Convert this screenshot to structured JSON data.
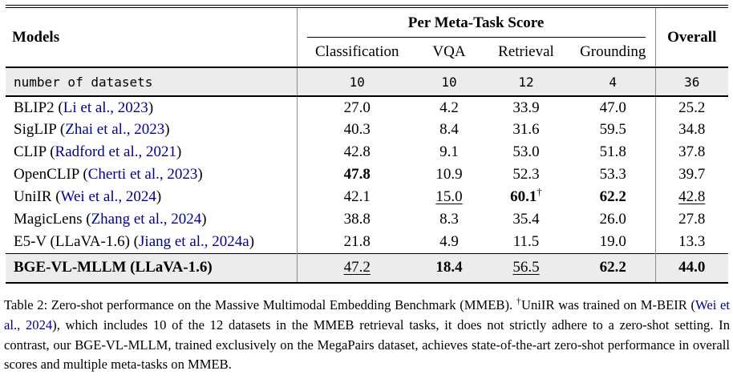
{
  "colors": {
    "citation_blue": "#00008B",
    "row_highlight": "#ececec",
    "rule_black": "#000000",
    "vertical_rule_gray": "#8c8c8c"
  },
  "table": {
    "header": {
      "models_label": "Models",
      "group_label": "Per Meta-Task Score",
      "overall_label": "Overall",
      "subcolumns": [
        "Classification",
        "VQA",
        "Retrieval",
        "Grounding"
      ]
    },
    "datasets_row": {
      "label": "number of datasets",
      "values": [
        "10",
        "10",
        "12",
        "4",
        "36"
      ]
    },
    "rows": [
      {
        "prefix": "BLIP2 (",
        "cite": "Li et al., 2023",
        "suffix": ")",
        "cells": [
          {
            "v": "27.0"
          },
          {
            "v": "4.2"
          },
          {
            "v": "33.9"
          },
          {
            "v": "47.0"
          },
          {
            "v": "25.2"
          }
        ]
      },
      {
        "prefix": "SigLIP (",
        "cite": "Zhai et al., 2023",
        "suffix": ")",
        "cells": [
          {
            "v": "40.3"
          },
          {
            "v": "8.4"
          },
          {
            "v": "31.6"
          },
          {
            "v": "59.5"
          },
          {
            "v": "34.8"
          }
        ]
      },
      {
        "prefix": "CLIP (",
        "cite": "Radford et al., 2021",
        "suffix": ")",
        "cells": [
          {
            "v": "42.8"
          },
          {
            "v": "9.1"
          },
          {
            "v": "53.0"
          },
          {
            "v": "51.8"
          },
          {
            "v": "37.8"
          }
        ]
      },
      {
        "prefix": "OpenCLIP (",
        "cite": "Cherti et al., 2023",
        "suffix": ")",
        "cells": [
          {
            "v": "47.8",
            "b": true
          },
          {
            "v": "10.9"
          },
          {
            "v": "52.3"
          },
          {
            "v": "53.3"
          },
          {
            "v": "39.7"
          }
        ]
      },
      {
        "prefix": "UniIR (",
        "cite": "Wei et al., 2024",
        "suffix": ")",
        "cells": [
          {
            "v": "42.1"
          },
          {
            "v": "15.0",
            "u": true
          },
          {
            "v": "60.1",
            "b": true,
            "sup": "†"
          },
          {
            "v": "62.2",
            "b": true
          },
          {
            "v": "42.8",
            "u": true
          }
        ]
      },
      {
        "prefix": "MagicLens (",
        "cite": "Zhang et al., 2024",
        "suffix": ")",
        "cells": [
          {
            "v": "38.8"
          },
          {
            "v": "8.3"
          },
          {
            "v": "35.4"
          },
          {
            "v": "26.0"
          },
          {
            "v": "27.8"
          }
        ]
      },
      {
        "prefix": "E5-V (LLaVA-1.6) (",
        "cite": "Jiang et al., 2024a",
        "suffix": ")",
        "cells": [
          {
            "v": "21.8"
          },
          {
            "v": "4.9"
          },
          {
            "v": "11.5"
          },
          {
            "v": "19.0"
          },
          {
            "v": "13.3"
          }
        ]
      }
    ],
    "final_row": {
      "prefix": "BGE-VL-MLLM (LLaVA-1.6)",
      "cite": "",
      "suffix": "",
      "bold_label": true,
      "cells": [
        {
          "v": "47.2",
          "u": true
        },
        {
          "v": "18.4",
          "b": true
        },
        {
          "v": "56.5",
          "u": true
        },
        {
          "v": "62.2",
          "b": true
        },
        {
          "v": "44.0",
          "b": true
        }
      ]
    }
  },
  "caption": {
    "part1": "Table 2: Zero-shot performance on the Massive Multimodal Embedding Benchmark (MMEB). ",
    "dagger": "†",
    "part2": "UniIR was trained on M-BEIR (",
    "cite": "Wei et al., 2024",
    "part3": "), which includes 10 of the 12 datasets in the MMEB retrieval tasks, it does not strictly adhere to a zero-shot setting. In contrast, our BGE-VL-MLLM, trained exclusively on the MegaPairs dataset, achieves state-of-the-art zero-shot performance in overall scores and multiple meta-tasks on MMEB."
  }
}
